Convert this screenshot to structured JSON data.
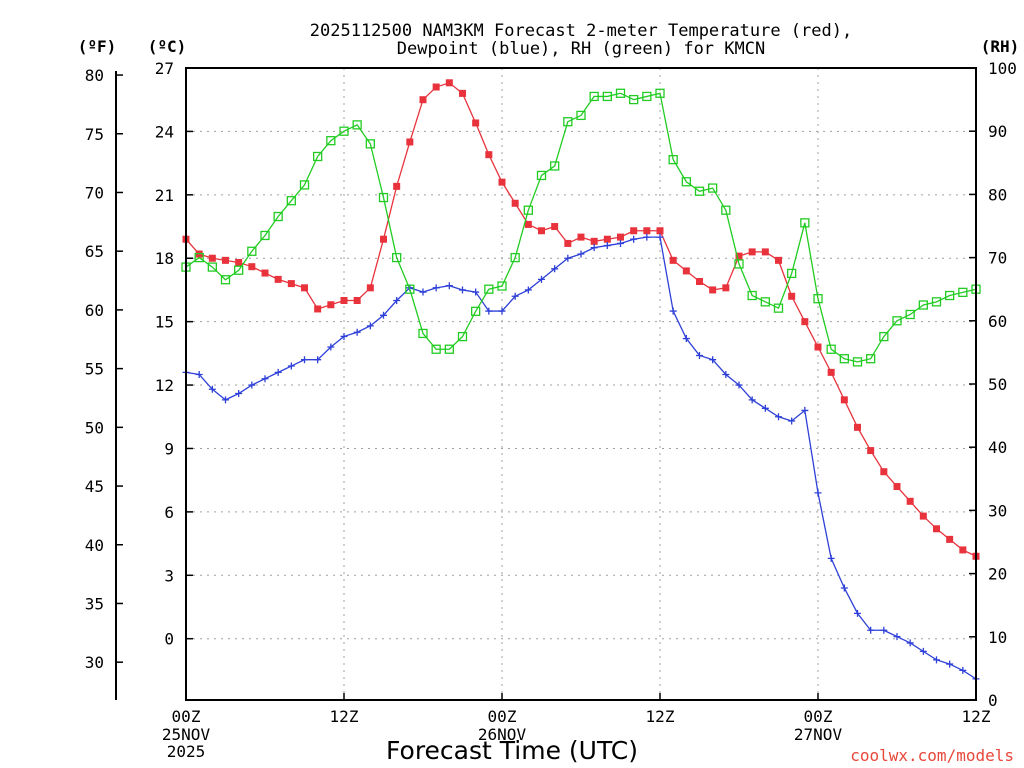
{
  "chart_data": {
    "type": "line",
    "title": [
      "2025112500 NAM3KM Forecast 2-meter Temperature (red),",
      "Dewpoint (blue), RH (green) for KMCN"
    ],
    "xlabel": "Forecast Time (UTC)",
    "credit": "coolwx.com/models",
    "units": {
      "fahrenheit": "(ºF)",
      "celsius": "(ºC)",
      "rh": "(RH)"
    },
    "x_range_hours": [
      0,
      60
    ],
    "x_ticks": [
      {
        "hour": 0,
        "label": "00Z",
        "date": "25NOV",
        "year": "2025"
      },
      {
        "hour": 12,
        "label": "12Z",
        "date": "",
        "year": ""
      },
      {
        "hour": 24,
        "label": "00Z",
        "date": "26NOV",
        "year": ""
      },
      {
        "hour": 36,
        "label": "12Z",
        "date": "",
        "year": ""
      },
      {
        "hour": 48,
        "label": "00Z",
        "date": "27NOV",
        "year": ""
      },
      {
        "hour": 60,
        "label": "12Z",
        "date": "",
        "year": ""
      }
    ],
    "celsius_axis": {
      "range": [
        -2.9,
        27
      ],
      "ticks": [
        0,
        3,
        6,
        9,
        12,
        15,
        18,
        21,
        24,
        27
      ]
    },
    "fahrenheit_ticks": [
      30,
      35,
      40,
      45,
      50,
      55,
      60,
      65,
      70,
      75,
      80
    ],
    "rh_axis": {
      "range": [
        0,
        100
      ],
      "ticks": [
        0,
        10,
        20,
        30,
        40,
        50,
        60,
        70,
        80,
        90,
        100
      ]
    },
    "hours": [
      0,
      1,
      2,
      3,
      4,
      5,
      6,
      7,
      8,
      9,
      10,
      11,
      12,
      13,
      14,
      15,
      16,
      17,
      18,
      19,
      20,
      21,
      22,
      23,
      24,
      25,
      26,
      27,
      28,
      29,
      30,
      31,
      32,
      33,
      34,
      35,
      36,
      37,
      38,
      39,
      40,
      41,
      42,
      43,
      44,
      45,
      46,
      47,
      48,
      49,
      50,
      51,
      52,
      53,
      54,
      55,
      56,
      57,
      58,
      59,
      60
    ],
    "series": [
      {
        "name": "Temperature",
        "unit": "C",
        "color": "#e8323c",
        "marker": "filled-square",
        "values": [
          18.9,
          18.2,
          18.0,
          17.9,
          17.8,
          17.6,
          17.3,
          17.0,
          16.8,
          16.6,
          15.6,
          15.8,
          16.0,
          16.0,
          16.6,
          18.9,
          21.4,
          23.5,
          25.5,
          26.1,
          26.3,
          25.8,
          24.4,
          22.9,
          21.6,
          20.6,
          19.6,
          19.3,
          19.5,
          18.7,
          19.0,
          18.8,
          18.9,
          19.0,
          19.3,
          19.3,
          19.3,
          17.9,
          17.4,
          16.9,
          16.5,
          16.6,
          18.1,
          18.3,
          18.3,
          17.9,
          16.2,
          15.0,
          13.8,
          12.6,
          11.3,
          10.0,
          8.9,
          7.9,
          7.2,
          6.5,
          5.8,
          5.2,
          4.7,
          4.2,
          3.9
        ]
      },
      {
        "name": "Dewpoint",
        "unit": "C",
        "color": "#2e40d8",
        "marker": "plus",
        "values": [
          12.6,
          12.5,
          11.8,
          11.3,
          11.6,
          12.0,
          12.3,
          12.6,
          12.9,
          13.2,
          13.2,
          13.8,
          14.3,
          14.5,
          14.8,
          15.3,
          16.0,
          16.6,
          16.4,
          16.6,
          16.7,
          16.5,
          16.4,
          15.5,
          15.5,
          16.2,
          16.5,
          17.0,
          17.5,
          18.0,
          18.2,
          18.5,
          18.6,
          18.7,
          18.9,
          19.0,
          19.0,
          15.5,
          14.2,
          13.4,
          13.2,
          12.5,
          12.0,
          11.3,
          10.9,
          10.5,
          10.3,
          10.8,
          6.9,
          3.8,
          2.4,
          1.2,
          0.4,
          0.4,
          0.1,
          -0.2,
          -0.6,
          -1.0,
          -1.2,
          -1.5,
          -1.9
        ]
      },
      {
        "name": "RH",
        "unit": "%",
        "color": "#22cc22",
        "marker": "open-square",
        "values": [
          68.5,
          70.0,
          68.5,
          66.5,
          68.0,
          71.0,
          73.5,
          76.5,
          79.0,
          81.5,
          86.0,
          88.5,
          90.0,
          91.0,
          88.0,
          79.5,
          70.0,
          65.0,
          58.0,
          55.5,
          55.5,
          57.5,
          61.5,
          65.0,
          65.5,
          70.0,
          77.5,
          83.0,
          84.5,
          91.5,
          92.5,
          95.5,
          95.5,
          96.0,
          95.0,
          95.5,
          96.0,
          85.5,
          82.0,
          80.5,
          81.0,
          77.5,
          69.0,
          64.0,
          63.0,
          62.0,
          67.5,
          75.5,
          63.5,
          55.5,
          54.0,
          53.5,
          54.0,
          57.5,
          60.0,
          61.0,
          62.5,
          63.0,
          64.0,
          64.5,
          65.0
        ]
      }
    ]
  }
}
